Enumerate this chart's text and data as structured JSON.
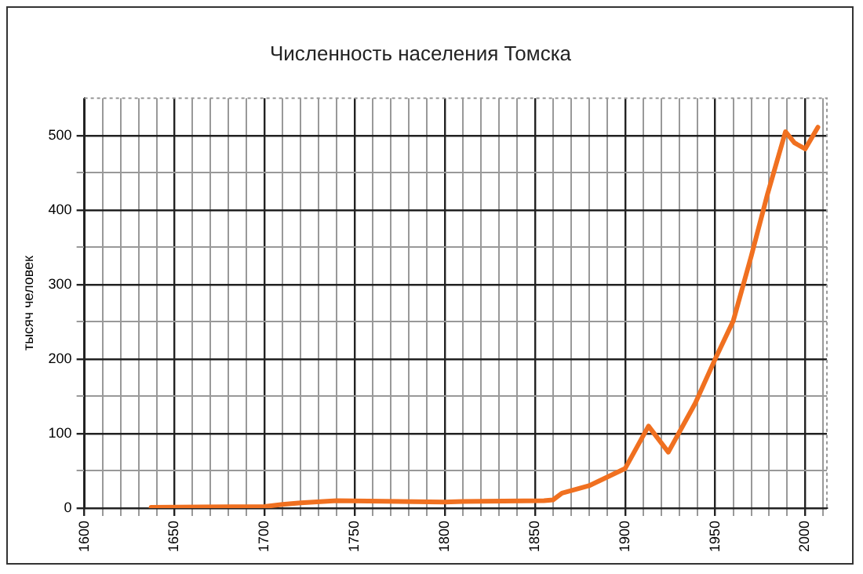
{
  "chart_data": {
    "type": "line",
    "title": "Численность населения Томска",
    "ylabel": "тысяч человек",
    "x": [
      1637,
      1700,
      1710,
      1720,
      1740,
      1800,
      1810,
      1855,
      1860,
      1865,
      1880,
      1900,
      1913,
      1924,
      1939,
      1950,
      1960,
      1970,
      1979,
      1989,
      1994,
      2000,
      2007
    ],
    "series": [
      {
        "color": "#f07020",
        "values": [
          1,
          2,
          5,
          7,
          10,
          8,
          9,
          10,
          11,
          20,
          30,
          53,
          110,
          75,
          141,
          200,
          251,
          338,
          421,
          505,
          490,
          482,
          511
        ]
      }
    ],
    "xlim": [
      1600,
      2012
    ],
    "xticks": [
      1600,
      {
        "value": 1610,
        "label": null
      },
      {
        "value": 1620,
        "label": null
      },
      {
        "value": 1630,
        "label": null
      },
      {
        "value": 1640,
        "label": null
      },
      1650,
      {
        "value": 1660,
        "label": null
      },
      {
        "value": 1670,
        "label": null
      },
      {
        "value": 1680,
        "label": null
      },
      {
        "value": 1690,
        "label": null
      },
      1700,
      {
        "value": 1710,
        "label": null
      },
      {
        "value": 1720,
        "label": null
      },
      {
        "value": 1730,
        "label": null
      },
      {
        "value": 1740,
        "label": null
      },
      1750,
      {
        "value": 1760,
        "label": null
      },
      {
        "value": 1770,
        "label": null
      },
      {
        "value": 1780,
        "label": null
      },
      {
        "value": 1790,
        "label": null
      },
      1800,
      {
        "value": 1810,
        "label": null
      },
      {
        "value": 1820,
        "label": null
      },
      {
        "value": 1830,
        "label": null
      },
      {
        "value": 1840,
        "label": null
      },
      1850,
      {
        "value": 1860,
        "label": null
      },
      {
        "value": 1870,
        "label": null
      },
      {
        "value": 1880,
        "label": null
      },
      {
        "value": 1890,
        "label": null
      },
      1900,
      {
        "value": 1910,
        "label": null
      },
      {
        "value": 1920,
        "label": null
      },
      {
        "value": 1930,
        "label": null
      },
      {
        "value": 1940,
        "label": null
      },
      1950,
      {
        "value": 1960,
        "label": null
      },
      {
        "value": 1970,
        "label": null
      },
      {
        "value": 1980,
        "label": null
      },
      {
        "value": 1990,
        "label": null
      },
      2000,
      {
        "value": 2010,
        "label": null
      }
    ],
    "ylim": [
      0,
      550
    ],
    "yticks": [
      0,
      {
        "value": 50,
        "label": null
      },
      100,
      {
        "value": 150,
        "label": null
      },
      200,
      {
        "value": 250,
        "label": null
      },
      300,
      {
        "value": 350,
        "label": null
      },
      400,
      {
        "value": 450,
        "label": null
      },
      500
    ],
    "grid": true,
    "legend": false,
    "marker": "none",
    "line_style": "solid"
  }
}
